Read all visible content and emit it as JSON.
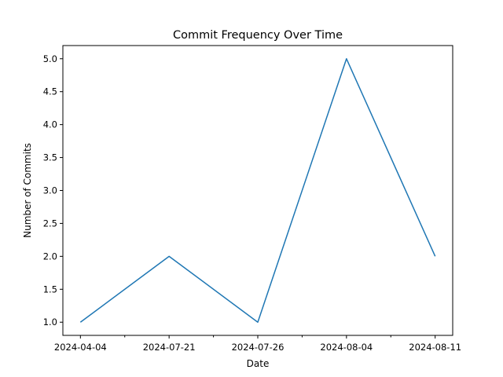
{
  "chart_data": {
    "type": "line",
    "title": "Commit Frequency Over Time",
    "xlabel": "Date",
    "ylabel": "Number of Commits",
    "categories": [
      "2024-04-04",
      "2024-07-21",
      "2024-07-26",
      "2024-08-04",
      "2024-08-11"
    ],
    "series": [
      {
        "values": [
          1,
          2,
          1,
          5,
          2
        ]
      }
    ],
    "ylim": [
      0.8,
      5.2
    ],
    "yticks": [
      "1.0",
      "1.5",
      "2.0",
      "2.5",
      "3.0",
      "3.5",
      "4.0",
      "4.5",
      "5.0"
    ],
    "grid": false,
    "line_color": "#1f77b4"
  }
}
